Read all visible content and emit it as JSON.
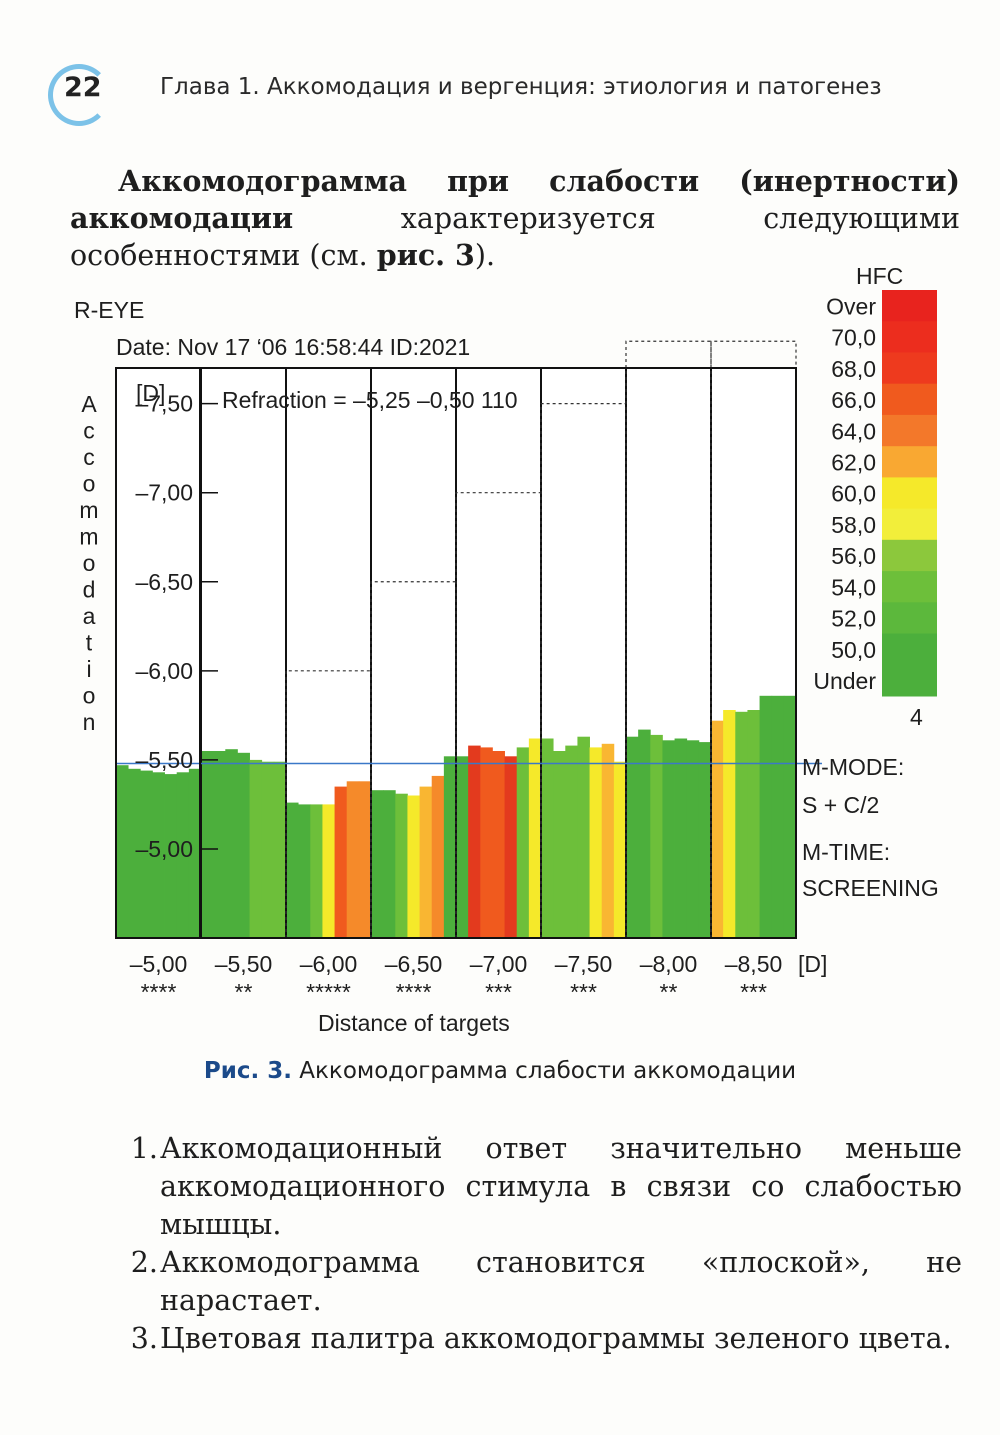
{
  "header": {
    "page_number": "22",
    "running_head": "Глава 1. Аккомодация и вергенция: этиология и патогенез"
  },
  "intro": {
    "bold_lead": "Аккомодограмма при слабости (инертности) аккомодации",
    "text_mid": " характеризуется следующими особенностями (см. ",
    "bold_ref": "рис. 3",
    "text_end": ")."
  },
  "chart_data": {
    "type": "bar",
    "eye": "R-EYE",
    "date_line": "Date: Nov 17 ‘06 16:58:44 ID:2021",
    "refraction_text": "Refraction = –5,25 –0,50 110",
    "y_unit": "[D]",
    "ylabel": "Accommodation",
    "xlabel": "Distance of targets",
    "x_unit": "[D]",
    "y_ticks": [
      {
        "value": 5.0,
        "label": "–5,00"
      },
      {
        "value": 5.5,
        "label": "–5,50"
      },
      {
        "value": 6.0,
        "label": "–6,00"
      },
      {
        "value": 6.5,
        "label": "–6,50"
      },
      {
        "value": 7.0,
        "label": "–7,00"
      },
      {
        "value": 7.5,
        "label": "–7,50"
      }
    ],
    "ylim": [
      4.5,
      7.7
    ],
    "reference_line": 5.48,
    "groups": [
      {
        "label": "–5,00",
        "stars": "****",
        "stimulus": 5.5,
        "bars": [
          {
            "v": 5.47,
            "c": "#4caf3c"
          },
          {
            "v": 5.45,
            "c": "#4caf3c"
          },
          {
            "v": 5.44,
            "c": "#4caf3c"
          },
          {
            "v": 5.43,
            "c": "#4caf3c"
          },
          {
            "v": 5.42,
            "c": "#4caf3c"
          },
          {
            "v": 5.43,
            "c": "#4caf3c"
          },
          {
            "v": 5.45,
            "c": "#4caf3c"
          }
        ]
      },
      {
        "label": "–5,50",
        "stars": "**",
        "stimulus": 5.5,
        "bars": [
          {
            "v": 5.55,
            "c": "#4caf3c"
          },
          {
            "v": 5.55,
            "c": "#4caf3c"
          },
          {
            "v": 5.56,
            "c": "#4caf3c"
          },
          {
            "v": 5.54,
            "c": "#4caf3c"
          },
          {
            "v": 5.5,
            "c": "#6dbf3a"
          },
          {
            "v": 5.49,
            "c": "#6dbf3a"
          },
          {
            "v": 5.49,
            "c": "#6dbf3a"
          }
        ]
      },
      {
        "label": "–6,00",
        "stars": "*****",
        "stimulus": 6.0,
        "bars": [
          {
            "v": 5.26,
            "c": "#4caf3c"
          },
          {
            "v": 5.25,
            "c": "#4caf3c"
          },
          {
            "v": 5.25,
            "c": "#6dbf3a"
          },
          {
            "v": 5.25,
            "c": "#f5e92a"
          },
          {
            "v": 5.35,
            "c": "#f05a1e"
          },
          {
            "v": 5.38,
            "c": "#f58a2a"
          },
          {
            "v": 5.38,
            "c": "#f58a2a"
          }
        ]
      },
      {
        "label": "–6,50",
        "stars": "****",
        "stimulus": 6.5,
        "bars": [
          {
            "v": 5.33,
            "c": "#4caf3c"
          },
          {
            "v": 5.33,
            "c": "#4caf3c"
          },
          {
            "v": 5.31,
            "c": "#6dbf3a"
          },
          {
            "v": 5.3,
            "c": "#f5e92a"
          },
          {
            "v": 5.35,
            "c": "#f9b632"
          },
          {
            "v": 5.41,
            "c": "#f58a2a"
          },
          {
            "v": 5.52,
            "c": "#4caf3c"
          }
        ]
      },
      {
        "label": "–7,00",
        "stars": "***",
        "stimulus": 7.0,
        "bars": [
          {
            "v": 5.52,
            "c": "#4caf3c"
          },
          {
            "v": 5.58,
            "c": "#e33a1e"
          },
          {
            "v": 5.57,
            "c": "#f05a1e"
          },
          {
            "v": 5.55,
            "c": "#f05a1e"
          },
          {
            "v": 5.52,
            "c": "#e33a1e"
          },
          {
            "v": 5.57,
            "c": "#6dbf3a"
          },
          {
            "v": 5.62,
            "c": "#f5e92a"
          }
        ]
      },
      {
        "label": "–7,50",
        "stars": "***",
        "stimulus": 7.5,
        "bars": [
          {
            "v": 5.62,
            "c": "#6dbf3a"
          },
          {
            "v": 5.55,
            "c": "#6dbf3a"
          },
          {
            "v": 5.58,
            "c": "#6dbf3a"
          },
          {
            "v": 5.63,
            "c": "#6dbf3a"
          },
          {
            "v": 5.57,
            "c": "#f5e92a"
          },
          {
            "v": 5.59,
            "c": "#f9b632"
          },
          {
            "v": 5.49,
            "c": "#f5e92a"
          }
        ]
      },
      {
        "label": "–8,00",
        "stars": "**",
        "stimulus": 7.85,
        "bars": [
          {
            "v": 5.63,
            "c": "#4caf3c"
          },
          {
            "v": 5.67,
            "c": "#4caf3c"
          },
          {
            "v": 5.64,
            "c": "#6dbf3a"
          },
          {
            "v": 5.61,
            "c": "#4caf3c"
          },
          {
            "v": 5.62,
            "c": "#4caf3c"
          },
          {
            "v": 5.61,
            "c": "#4caf3c"
          },
          {
            "v": 5.6,
            "c": "#4caf3c"
          }
        ]
      },
      {
        "label": "–8,50",
        "stars": "***",
        "stimulus": 7.85,
        "bars": [
          {
            "v": 5.72,
            "c": "#f9b632"
          },
          {
            "v": 5.78,
            "c": "#f5e92a"
          },
          {
            "v": 5.77,
            "c": "#6dbf3a"
          },
          {
            "v": 5.78,
            "c": "#6dbf3a"
          },
          {
            "v": 5.86,
            "c": "#4caf3c"
          },
          {
            "v": 5.86,
            "c": "#4caf3c"
          },
          {
            "v": 5.86,
            "c": "#4caf3c"
          }
        ]
      }
    ],
    "hfc_legend": {
      "title": "HFC",
      "labels": [
        "Over",
        "70,0",
        "68,0",
        "66,0",
        "64,0",
        "62,0",
        "60,0",
        "58,0",
        "56,0",
        "54,0",
        "52,0",
        "50,0",
        "Under"
      ],
      "colors": [
        "#e8231e",
        "#ec2d1e",
        "#ee3a1e",
        "#f05a1e",
        "#f3782a",
        "#f9a832",
        "#f5e92a",
        "#f2ee3a",
        "#8cc83c",
        "#6dbf3a",
        "#5cb83c",
        "#4caf3c",
        "#4caf3c"
      ],
      "footer": "4"
    },
    "info": [
      "M-MODE:",
      "S + C/2",
      "M-TIME:",
      "SCREENING"
    ]
  },
  "caption": {
    "label": "Рис. 3.",
    "text": " Аккомодограмма слабости аккомодации"
  },
  "list": [
    {
      "num": "1.",
      "text": "Аккомодационный ответ значительно меньше аккомодационного стимула в связи со слабостью мышцы."
    },
    {
      "num": "2.",
      "text": "Аккомодограмма становится «плоской», не нарастает."
    },
    {
      "num": "3.",
      "text": "Цветовая палитра аккомодограммы зеленого цвета."
    }
  ]
}
